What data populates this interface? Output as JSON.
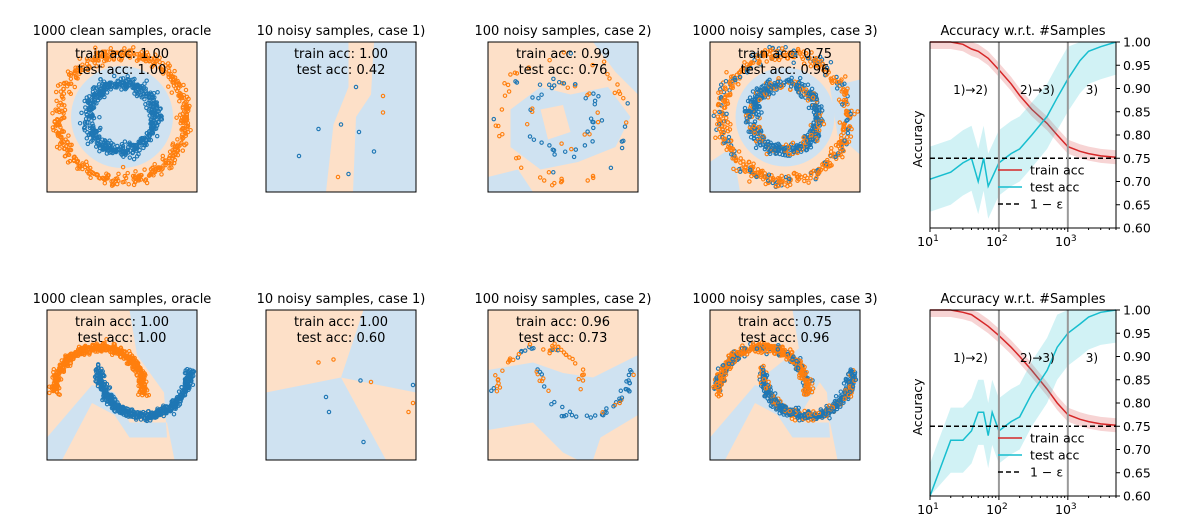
{
  "colors": {
    "blue_point": "#1f77b4",
    "orange_point": "#ff7f0e",
    "blue_region": "#cfe2f1",
    "orange_region": "#fde0c8",
    "train_line": "#d62728",
    "test_line": "#17becf",
    "baseline": "#000000",
    "vline": "#999999"
  },
  "chart_data": [
    {
      "type": "scatter",
      "row": 1,
      "dataset": "circles",
      "title": "1000 clean samples, oracle",
      "train_acc_text": "train acc: 1.00",
      "test_acc_text": "test acc: 1.00",
      "n_points": 1000,
      "label_noise": "none",
      "decision_region": "inner circle blue, outside orange"
    },
    {
      "type": "scatter",
      "row": 1,
      "dataset": "circles",
      "title": "10 noisy samples, case 1)",
      "train_acc_text": "train acc: 1.00",
      "test_acc_text": "test acc: 0.42",
      "n_points": 10,
      "label_noise": "noisy",
      "decision_region": "mostly blue with orange diagonal band"
    },
    {
      "type": "scatter",
      "row": 1,
      "dataset": "circles",
      "title": "100 noisy samples, case 2)",
      "train_acc_text": "train acc: 0.99",
      "test_acc_text": "test acc: 0.76",
      "n_points": 100,
      "label_noise": "noisy",
      "decision_region": "fragmented"
    },
    {
      "type": "scatter",
      "row": 1,
      "dataset": "circles",
      "title": "1000 noisy samples, case 3)",
      "train_acc_text": "train acc: 0.75",
      "test_acc_text": "test acc: 0.96",
      "n_points": 1000,
      "label_noise": "noisy",
      "decision_region": "inner circle blue, outside orange"
    },
    {
      "type": "line",
      "row": 1,
      "title": "Accuracy w.r.t. #Samples",
      "xlabel": "",
      "ylabel": "Accuracy",
      "xscale": "log",
      "xlim": [
        10,
        5000
      ],
      "ylim": [
        0.6,
        1.0
      ],
      "xticks": [
        {
          "v": 10,
          "b": "10",
          "e": "1"
        },
        {
          "v": 100,
          "b": "10",
          "e": "2"
        },
        {
          "v": 1000,
          "b": "10",
          "e": "3"
        }
      ],
      "yticks": [
        "0.60",
        "0.65",
        "0.70",
        "0.75",
        "0.80",
        "0.85",
        "0.90",
        "0.95",
        "1.00"
      ],
      "regions": [
        "1)→2)",
        "2)→3)",
        "3)"
      ],
      "vlines": [
        100,
        1000
      ],
      "legend": {
        "placement": "lower-right",
        "entries": [
          "train acc",
          "test acc",
          "1 − ε"
        ]
      },
      "series": [
        {
          "name": "train acc",
          "x": [
            10,
            15,
            20,
            30,
            40,
            50,
            70,
            100,
            150,
            200,
            300,
            500,
            700,
            1000,
            1500,
            2000,
            3000,
            5000
          ],
          "y": [
            1.0,
            1.0,
            1.0,
            0.995,
            0.985,
            0.98,
            0.965,
            0.94,
            0.91,
            0.885,
            0.855,
            0.825,
            0.8,
            0.775,
            0.765,
            0.76,
            0.755,
            0.752
          ],
          "band": 0.015
        },
        {
          "name": "test acc",
          "x": [
            10,
            20,
            30,
            40,
            50,
            60,
            70,
            100,
            150,
            200,
            300,
            500,
            700,
            1000,
            1500,
            2000,
            3000,
            5000
          ],
          "y": [
            0.705,
            0.72,
            0.74,
            0.75,
            0.7,
            0.75,
            0.69,
            0.74,
            0.76,
            0.77,
            0.8,
            0.84,
            0.88,
            0.92,
            0.96,
            0.98,
            0.99,
            1.0
          ],
          "band": 0.07
        },
        {
          "name": "1 − ε",
          "x": [
            10,
            5000
          ],
          "y": [
            0.75,
            0.75
          ],
          "style": "dashed"
        }
      ]
    },
    {
      "type": "scatter",
      "row": 2,
      "dataset": "moons",
      "title": "1000 clean samples, oracle",
      "train_acc_text": "train acc: 1.00",
      "test_acc_text": "test acc: 1.00",
      "n_points": 1000,
      "label_noise": "none",
      "decision_region": "wavy boundary"
    },
    {
      "type": "scatter",
      "row": 2,
      "dataset": "moons",
      "title": "10 noisy samples, case 1)",
      "train_acc_text": "train acc: 1.00",
      "test_acc_text": "test acc: 0.60",
      "n_points": 10,
      "label_noise": "noisy",
      "decision_region": "crossing wedges"
    },
    {
      "type": "scatter",
      "row": 2,
      "dataset": "moons",
      "title": "100 noisy samples, case 2)",
      "train_acc_text": "train acc: 0.96",
      "test_acc_text": "test acc: 0.73",
      "n_points": 100,
      "label_noise": "noisy",
      "decision_region": "fragmented"
    },
    {
      "type": "scatter",
      "row": 2,
      "dataset": "moons",
      "title": "1000 noisy samples, case 3)",
      "train_acc_text": "train acc: 0.75",
      "test_acc_text": "test acc: 0.96",
      "n_points": 1000,
      "label_noise": "noisy",
      "decision_region": "wavy boundary"
    },
    {
      "type": "line",
      "row": 2,
      "title": "Accuracy w.r.t. #Samples",
      "xlabel": "",
      "ylabel": "Accuracy",
      "xscale": "log",
      "xlim": [
        10,
        5000
      ],
      "ylim": [
        0.6,
        1.0
      ],
      "xticks": [
        {
          "v": 10,
          "b": "10",
          "e": "1"
        },
        {
          "v": 100,
          "b": "10",
          "e": "2"
        },
        {
          "v": 1000,
          "b": "10",
          "e": "3"
        }
      ],
      "yticks": [
        "0.60",
        "0.65",
        "0.70",
        "0.75",
        "0.80",
        "0.85",
        "0.90",
        "0.95",
        "1.00"
      ],
      "regions": [
        "1)→2)",
        "2)→3)",
        "3)"
      ],
      "vlines": [
        100,
        1000
      ],
      "legend": {
        "placement": "lower-right",
        "entries": [
          "train acc",
          "test acc",
          "1 − ε"
        ]
      },
      "series": [
        {
          "name": "train acc",
          "x": [
            10,
            15,
            20,
            30,
            40,
            50,
            70,
            100,
            150,
            200,
            300,
            500,
            700,
            1000,
            1500,
            2000,
            3000,
            5000
          ],
          "y": [
            1.0,
            1.0,
            1.0,
            0.995,
            0.99,
            0.98,
            0.965,
            0.945,
            0.92,
            0.9,
            0.87,
            0.83,
            0.8,
            0.775,
            0.765,
            0.76,
            0.755,
            0.752
          ],
          "band": 0.015
        },
        {
          "name": "test acc",
          "x": [
            10,
            20,
            30,
            40,
            50,
            60,
            70,
            80,
            100,
            150,
            200,
            300,
            500,
            700,
            1000,
            1500,
            2000,
            3000,
            5000
          ],
          "y": [
            0.6,
            0.72,
            0.72,
            0.74,
            0.78,
            0.78,
            0.73,
            0.78,
            0.74,
            0.76,
            0.77,
            0.82,
            0.87,
            0.92,
            0.95,
            0.97,
            0.985,
            0.995,
            1.0
          ],
          "band": 0.07
        },
        {
          "name": "1 − ε",
          "x": [
            10,
            5000
          ],
          "y": [
            0.75,
            0.75
          ],
          "style": "dashed"
        }
      ]
    }
  ]
}
